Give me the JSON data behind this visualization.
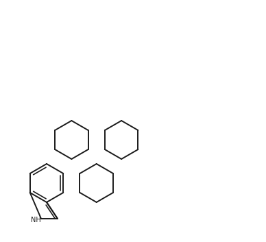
{
  "bg": "#ffffff",
  "lc": "#1a1a1a",
  "lw": 1.4,
  "blw": 2.8,
  "fs": 6.5,
  "figsize": [
    3.88,
    3.53
  ],
  "dpi": 100
}
